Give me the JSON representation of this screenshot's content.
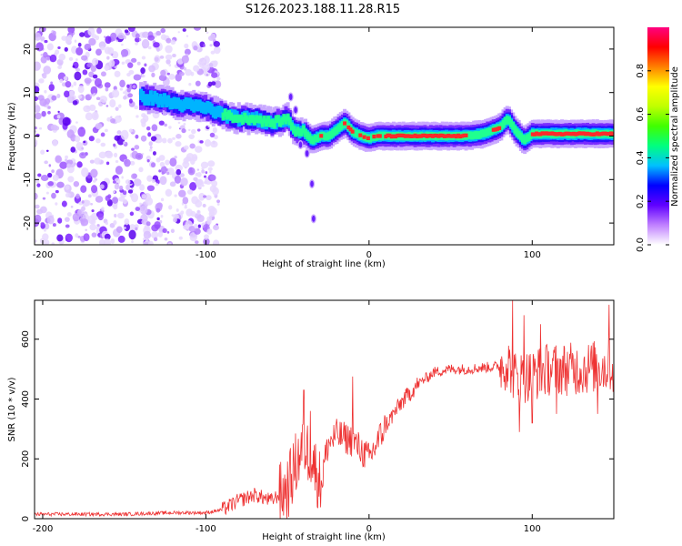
{
  "title": "S126.2023.188.11.28.R15",
  "chart_data": [
    {
      "type": "heatmap",
      "xlabel": "Height of straight line (km)",
      "ylabel": "Frequency (Hz)",
      "xlim": [
        -205,
        150
      ],
      "ylim": [
        -25,
        25
      ],
      "x_ticks": [
        -200,
        -100,
        0,
        100
      ],
      "y_ticks": [
        -20,
        -10,
        0,
        10,
        20
      ],
      "x_tick_labels": [
        "-200",
        "-100",
        "0",
        "100"
      ],
      "y_tick_labels": [
        "-20",
        "-10",
        "0",
        "10",
        "20"
      ],
      "noise_region": {
        "x_from": -205,
        "x_to": -92,
        "y_from": -25,
        "y_to": 25
      },
      "ridge": [
        {
          "x": -140,
          "y": 9
        },
        {
          "x": -130,
          "y": 8.5
        },
        {
          "x": -120,
          "y": 7.5
        },
        {
          "x": -110,
          "y": 7
        },
        {
          "x": -100,
          "y": 6.5
        },
        {
          "x": -90,
          "y": 5
        },
        {
          "x": -80,
          "y": 4
        },
        {
          "x": -70,
          "y": 4
        },
        {
          "x": -60,
          "y": 3
        },
        {
          "x": -50,
          "y": 4
        },
        {
          "x": -45,
          "y": 1
        },
        {
          "x": -40,
          "y": 1
        },
        {
          "x": -35,
          "y": -1
        },
        {
          "x": -30,
          "y": 0
        },
        {
          "x": -25,
          "y": 0
        },
        {
          "x": -20,
          "y": 1.5
        },
        {
          "x": -15,
          "y": 3
        },
        {
          "x": -10,
          "y": 1
        },
        {
          "x": -5,
          "y": 0
        },
        {
          "x": 0,
          "y": -0.5
        },
        {
          "x": 5,
          "y": 0
        },
        {
          "x": 10,
          "y": 0
        },
        {
          "x": 20,
          "y": 0
        },
        {
          "x": 40,
          "y": 0
        },
        {
          "x": 60,
          "y": 0
        },
        {
          "x": 70,
          "y": 0.5
        },
        {
          "x": 80,
          "y": 2
        },
        {
          "x": 85,
          "y": 4
        },
        {
          "x": 90,
          "y": 1
        },
        {
          "x": 95,
          "y": -1
        },
        {
          "x": 100,
          "y": 0.5
        },
        {
          "x": 120,
          "y": 0.5
        },
        {
          "x": 140,
          "y": 0.5
        },
        {
          "x": 150,
          "y": 0.5
        }
      ],
      "secondary_features": [
        {
          "x": -48,
          "y": 9
        },
        {
          "x": -45,
          "y": 6
        },
        {
          "x": -42,
          "y": -2
        },
        {
          "x": -38,
          "y": -4
        },
        {
          "x": -35,
          "y": -11
        },
        {
          "x": -34,
          "y": -19
        }
      ],
      "colorbar": {
        "label": "Normalized spectral amplitude",
        "range": [
          0,
          1
        ],
        "ticks": [
          0.0,
          0.2,
          0.4,
          0.6,
          0.8
        ],
        "tick_labels": [
          "0.0",
          "0.2",
          "0.4",
          "0.6",
          "0.8"
        ],
        "colors": [
          "#ffffff",
          "#c080ff",
          "#6000ff",
          "#0000ff",
          "#00c0ff",
          "#00ff80",
          "#40ff00",
          "#c0ff00",
          "#ffff00",
          "#ff8000",
          "#ff0000",
          "#ff0080"
        ]
      }
    },
    {
      "type": "line",
      "xlabel": "Height of straight line (km)",
      "ylabel": "SNR (10 * v/v)",
      "xlim": [
        -205,
        150
      ],
      "ylim": [
        0,
        730
      ],
      "x_ticks": [
        -200,
        -100,
        0,
        100
      ],
      "y_ticks": [
        0,
        200,
        400,
        600
      ],
      "x_tick_labels": [
        "-200",
        "-100",
        "0",
        "100"
      ],
      "y_tick_labels": [
        "0",
        "200",
        "400",
        "600"
      ],
      "line_color": "#ee3333",
      "envelope": [
        {
          "x": -205,
          "y": 15
        },
        {
          "x": -150,
          "y": 15
        },
        {
          "x": -120,
          "y": 20
        },
        {
          "x": -100,
          "y": 20
        },
        {
          "x": -90,
          "y": 30
        },
        {
          "x": -80,
          "y": 60
        },
        {
          "x": -70,
          "y": 80
        },
        {
          "x": -60,
          "y": 60
        },
        {
          "x": -50,
          "y": 100
        },
        {
          "x": -45,
          "y": 180
        },
        {
          "x": -40,
          "y": 250
        },
        {
          "x": -35,
          "y": 200
        },
        {
          "x": -30,
          "y": 120
        },
        {
          "x": -25,
          "y": 250
        },
        {
          "x": -20,
          "y": 280
        },
        {
          "x": -10,
          "y": 260
        },
        {
          "x": 0,
          "y": 200
        },
        {
          "x": 10,
          "y": 310
        },
        {
          "x": 20,
          "y": 390
        },
        {
          "x": 30,
          "y": 450
        },
        {
          "x": 40,
          "y": 490
        },
        {
          "x": 50,
          "y": 500
        },
        {
          "x": 60,
          "y": 500
        },
        {
          "x": 70,
          "y": 505
        },
        {
          "x": 80,
          "y": 510
        },
        {
          "x": 85,
          "y": 520
        },
        {
          "x": 90,
          "y": 470
        },
        {
          "x": 100,
          "y": 480
        },
        {
          "x": 110,
          "y": 500
        },
        {
          "x": 120,
          "y": 500
        },
        {
          "x": 130,
          "y": 500
        },
        {
          "x": 140,
          "y": 510
        },
        {
          "x": 150,
          "y": 500
        }
      ],
      "spikes": [
        {
          "x": -40,
          "y": 430
        },
        {
          "x": -36,
          "y": 360
        },
        {
          "x": -10,
          "y": 475
        },
        {
          "x": 88,
          "y": 730
        },
        {
          "x": 95,
          "y": 680
        },
        {
          "x": 105,
          "y": 650
        },
        {
          "x": 147,
          "y": 715
        },
        {
          "x": 92,
          "y": 290
        },
        {
          "x": 100,
          "y": 320
        },
        {
          "x": 115,
          "y": 350
        },
        {
          "x": 140,
          "y": 350
        }
      ]
    }
  ]
}
